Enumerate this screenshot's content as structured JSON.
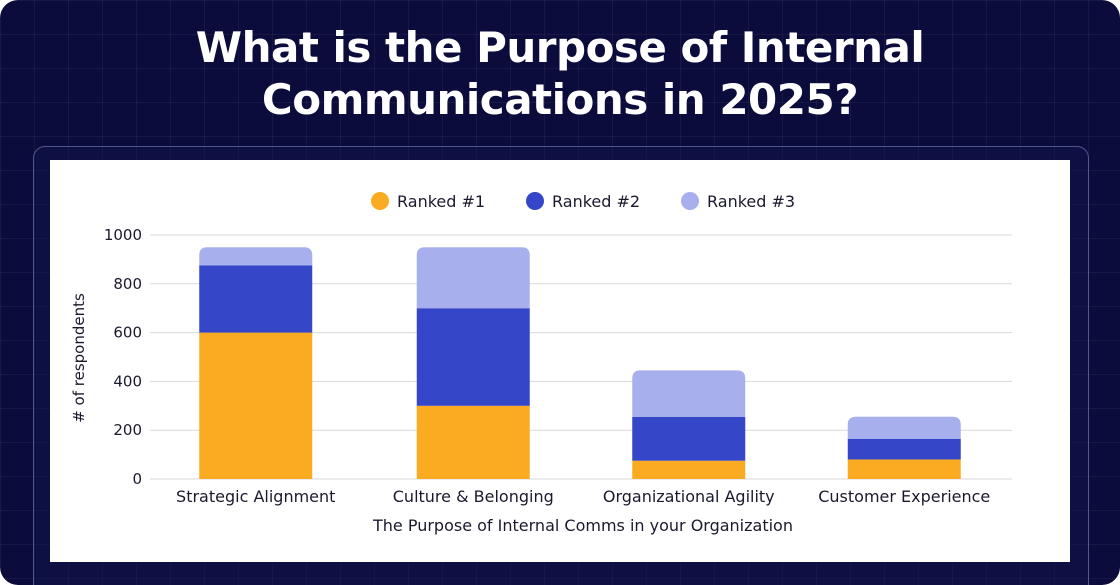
{
  "header": {
    "title": "What is the Purpose of Internal Communications in 2025?"
  },
  "colors": {
    "background": "#0b0c3b",
    "ranked1": "#fbab21",
    "ranked2": "#3546c9",
    "ranked3": "#a7b0ec"
  },
  "chart_data": {
    "type": "bar",
    "stacked": true,
    "categories": [
      "Strategic Alignment",
      "Culture & Belonging",
      "Organizational Agility",
      "Customer Experience"
    ],
    "series": [
      {
        "name": "Ranked #1",
        "values": [
          600,
          300,
          75,
          80
        ]
      },
      {
        "name": "Ranked #2",
        "values": [
          275,
          400,
          180,
          85
        ]
      },
      {
        "name": "Ranked #3",
        "values": [
          75,
          250,
          190,
          90
        ]
      }
    ],
    "xlabel": "The Purpose of Internal Comms in your Organization",
    "ylabel": "# of respondents",
    "ylim": [
      0,
      1000
    ],
    "yticks": [
      0,
      200,
      400,
      600,
      800,
      1000
    ],
    "grid": true,
    "legend_position": "top"
  }
}
